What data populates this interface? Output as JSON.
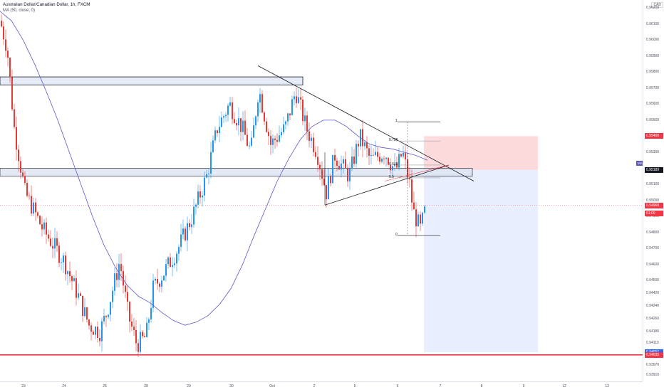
{
  "header": {
    "symbol_title": "Australian Dollar/Canadian Dollar, 1h, FXCM",
    "indicator": "MA (50, close, 0)"
  },
  "currency": "CAD",
  "ma_badge": "MA",
  "price_axis": {
    "labels": [
      "0.96200",
      "0.96100",
      "0.96000",
      "0.95900",
      "0.95800",
      "0.95700",
      "0.95600",
      "0.95500",
      "0.95300",
      "0.95100",
      "0.95000",
      "0.94900",
      "0.94800",
      "0.94700",
      "0.94600",
      "0.94500",
      "0.94420",
      "0.94340",
      "0.94260",
      "0.94180",
      "0.94110",
      "0.94035",
      "0.93970",
      "0.93910"
    ],
    "tags": [
      {
        "text": "0.95400",
        "color": "#f23645",
        "price": 0.954
      },
      {
        "text": "0.95189",
        "color": "#131722",
        "price": 0.95189
      },
      {
        "text": "0.94968",
        "color": "#f23645",
        "price": 0.94968
      },
      {
        "text": "51:00",
        "color": "#f23645",
        "price": 0.9492
      },
      {
        "text": "0.94052",
        "color": "#2962ff",
        "price": 0.94052
      },
      {
        "text": "0.94035",
        "color": "#f23645",
        "price": 0.94035
      }
    ]
  },
  "time_axis": {
    "labels": [
      "23",
      "24",
      "25",
      "28",
      "29",
      "30",
      "Oct",
      "2",
      "5",
      "6",
      "7",
      "8",
      "9",
      "12",
      "13"
    ]
  },
  "fib_labels": [
    "1",
    "0.786",
    "0.618",
    "0.5",
    "0"
  ],
  "colors": {
    "up": "#2196f3",
    "down": "#e53935",
    "ma": "#5b58c9",
    "support": "#f23645"
  },
  "chart_data": {
    "type": "candlestick",
    "title": "Australian Dollar/Canadian Dollar, 1h, FXCM",
    "ylim": [
      0.9387,
      0.9625
    ],
    "support_level": 0.94035,
    "resistance_zone": [
      0.9572,
      0.9577
    ],
    "mid_zone": [
      0.9515,
      0.952
    ],
    "position": {
      "entry": 0.95189,
      "stop": 0.954,
      "target": 0.94052
    },
    "fib": {
      "1": 0.9549,
      "0.786": 0.9537,
      "0.618": 0.9522,
      "0.5": 0.9514,
      "0": 0.9478
    },
    "ma_series": [
      0.9618,
      0.9612,
      0.96,
      0.9585,
      0.9568,
      0.955,
      0.953,
      0.951,
      0.949,
      0.9472,
      0.9458,
      0.9447,
      0.944,
      0.9436,
      0.943,
      0.9425,
      0.9422,
      0.9424,
      0.9428,
      0.9435,
      0.9445,
      0.946,
      0.9478,
      0.9495,
      0.9512,
      0.9526,
      0.9538,
      0.9546,
      0.955,
      0.955,
      0.9546,
      0.954,
      0.9535,
      0.9533,
      0.9532,
      0.953,
      0.9528,
      0.9525
    ]
  }
}
